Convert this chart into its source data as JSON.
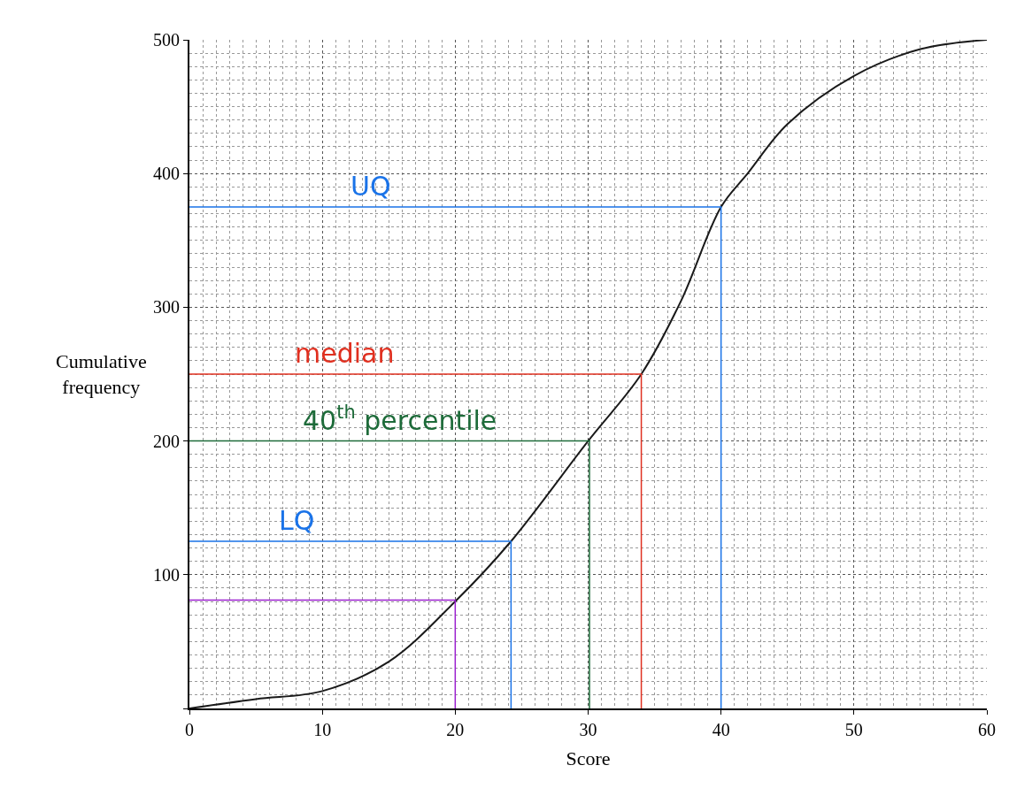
{
  "chart_data": {
    "type": "line",
    "xlabel": "Score",
    "ylabel": "Cumulative frequency",
    "xlim": [
      0,
      60
    ],
    "ylim": [
      0,
      500
    ],
    "xticks": [
      0,
      10,
      20,
      30,
      40,
      50,
      60
    ],
    "yticks": [
      {
        "value": 0,
        "label": null
      },
      100,
      200,
      300,
      400,
      500
    ],
    "grid": true,
    "marker": "none",
    "line_style": "solid",
    "series": [
      {
        "color": "#1a1a1a",
        "x": [
          0,
          5,
          10,
          15,
          20,
          24.2,
          30,
          34,
          37,
          40,
          42,
          45,
          50,
          55,
          60
        ],
        "values": [
          0,
          7,
          13,
          35,
          80,
          125,
          200,
          250,
          305,
          375,
          400,
          437,
          473,
          493,
          500
        ]
      },
      {
        "color": "#9b1fcf",
        "x": [
          0,
          20,
          20
        ],
        "values": [
          81,
          81,
          0
        ]
      },
      {
        "color": "#1a73e8",
        "x": [
          0,
          24.2,
          24.2
        ],
        "values": [
          125,
          125,
          0
        ]
      },
      {
        "color": "#1e6b3a",
        "x": [
          0,
          30.1,
          30.1
        ],
        "values": [
          200,
          200,
          0
        ]
      },
      {
        "color": "#e03020",
        "x": [
          0,
          34,
          34
        ],
        "values": [
          250,
          250,
          0
        ]
      },
      {
        "color": "#1a73e8",
        "x": [
          0,
          40,
          40
        ],
        "values": [
          375,
          375,
          0
        ]
      }
    ],
    "annotations": [
      "LQ",
      "40$^{th}$ percentile",
      "median",
      "UQ"
    ]
  }
}
